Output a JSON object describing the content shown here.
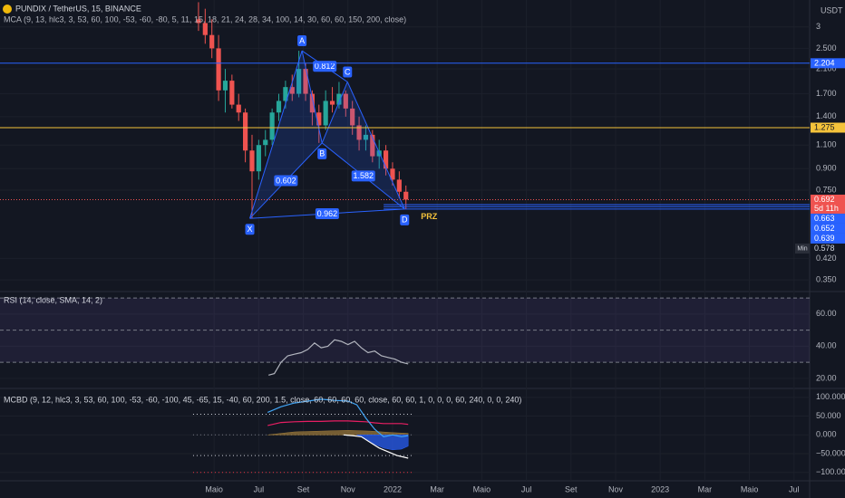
{
  "chart_data": [
    {
      "type": "candlestick",
      "title": "PUNDIX / TetherUS, 15, BINANCE",
      "subtitle": "MCA (9, 13, hlc3, 3, 53, 60, 100, -53, -60, -80, 5, 11, 15, 18, 21, 24, 28, 34, 100, 14, 30, 60, 60, 150, 200, close)",
      "currency": "USDT",
      "log_scale": true,
      "up_color": "#26a69a",
      "down_color": "#ef5350",
      "xlim": [
        -5.6,
        30.7
      ],
      "xticks": [
        {
          "value": 4,
          "label": "Maio"
        },
        {
          "value": 6,
          "label": "Jul"
        },
        {
          "value": 8,
          "label": "Set"
        },
        {
          "value": 10,
          "label": "Nov"
        },
        {
          "value": 12,
          "label": "2022"
        },
        {
          "value": 14,
          "label": "Mar"
        },
        {
          "value": 16,
          "label": "Maio"
        },
        {
          "value": 18,
          "label": "Jul"
        },
        {
          "value": 20,
          "label": "Set"
        },
        {
          "value": 22,
          "label": "Nov"
        },
        {
          "value": 24,
          "label": "2023"
        },
        {
          "value": 26,
          "label": "Mar"
        },
        {
          "value": 28,
          "label": "Maio"
        },
        {
          "value": 30,
          "label": "Jul"
        }
      ],
      "ylim": [
        0.317,
        3.77
      ],
      "yticks": [
        3,
        {
          "value": 2.5,
          "label": "2.500"
        },
        {
          "value": 2.1,
          "label": "2.100"
        },
        {
          "value": 1.7,
          "label": "1.700"
        },
        {
          "value": 1.4,
          "label": "1.400"
        },
        {
          "value": 1.1,
          "label": "1.100"
        },
        {
          "value": 0.9,
          "label": "0.900"
        },
        {
          "value": 0.75,
          "label": "0.750"
        },
        {
          "value": 0.42,
          "label": "0.420"
        },
        {
          "value": 0.35,
          "label": "0.350"
        }
      ],
      "x": [
        3.3,
        3.6,
        3.9,
        4.2,
        4.5,
        4.8,
        5.1,
        5.4,
        5.7,
        6.0,
        6.3,
        6.6,
        6.9,
        7.2,
        7.5,
        7.8,
        8.1,
        8.4,
        8.7,
        9.0,
        9.3,
        9.6,
        9.9,
        10.2,
        10.5,
        10.8,
        11.1,
        11.4,
        11.7,
        12.0,
        12.3,
        12.6
      ],
      "open": [
        3.2,
        3.1,
        2.8,
        2.5,
        1.75,
        1.9,
        1.55,
        1.45,
        1.05,
        0.88,
        1.1,
        1.15,
        1.45,
        1.6,
        1.8,
        1.7,
        2.1,
        1.7,
        1.45,
        1.3,
        1.6,
        1.55,
        1.7,
        1.5,
        1.3,
        1.15,
        1.2,
        1.0,
        1.05,
        0.9,
        0.82,
        0.74
      ],
      "high": [
        3.7,
        3.5,
        3.2,
        2.8,
        2.1,
        2.0,
        1.7,
        1.5,
        1.2,
        1.15,
        1.25,
        1.5,
        1.7,
        1.9,
        2.0,
        2.45,
        2.2,
        1.75,
        1.55,
        1.75,
        1.8,
        1.88,
        1.75,
        1.6,
        1.4,
        1.3,
        1.25,
        1.15,
        1.1,
        0.95,
        0.88,
        0.78
      ],
      "low": [
        2.9,
        2.6,
        2.3,
        1.6,
        1.45,
        1.5,
        1.35,
        0.95,
        0.59,
        0.82,
        1.0,
        1.1,
        1.35,
        1.5,
        1.6,
        1.65,
        1.6,
        1.3,
        1.12,
        1.25,
        1.45,
        1.5,
        1.4,
        1.2,
        1.05,
        1.05,
        0.95,
        0.9,
        0.85,
        0.78,
        0.7,
        0.639
      ],
      "close": [
        3.1,
        2.8,
        2.5,
        1.75,
        1.9,
        1.55,
        1.45,
        1.05,
        0.88,
        1.1,
        1.15,
        1.45,
        1.6,
        1.8,
        1.7,
        2.1,
        1.7,
        1.45,
        1.3,
        1.6,
        1.55,
        1.7,
        1.5,
        1.3,
        1.15,
        1.2,
        1.0,
        1.05,
        0.9,
        0.82,
        0.74,
        0.692
      ],
      "pattern": {
        "color": "#2962ff",
        "points": [
          {
            "label": "X",
            "x": 5.6,
            "y": 0.59
          },
          {
            "label": "A",
            "x": 7.94,
            "y": 2.45
          },
          {
            "label": "B",
            "x": 8.84,
            "y": 1.12
          },
          {
            "label": "C",
            "x": 9.98,
            "y": 1.88
          },
          {
            "label": "D",
            "x": 12.54,
            "y": 0.639
          }
        ],
        "ratios": [
          "0.602",
          "0.812",
          "1.582",
          "0.962"
        ]
      },
      "hlines": [
        {
          "value": 2.204,
          "color": "#2962ff",
          "text_color": "#ffffff"
        },
        {
          "value": 1.275,
          "color": "#f5c33b",
          "text_color": "#131722"
        }
      ],
      "last": {
        "value": 0.692,
        "countdown": "5d 11h",
        "color": "#ef5350"
      },
      "prz": {
        "label": "PRZ",
        "x0": 11.6,
        "levels": [
          0.663,
          0.652,
          0.639
        ],
        "color": "#2962ff",
        "label_color": "#f5c33b"
      },
      "min": {
        "value": 0.578,
        "label": "Min"
      }
    },
    {
      "type": "line",
      "title": "RSI (14, close, SMA, 14, 2)",
      "ylim": [
        14.3,
        74
      ],
      "yticks": [
        {
          "value": 60,
          "label": "60.00"
        },
        {
          "value": 40,
          "label": "40.00"
        },
        {
          "value": 20,
          "label": "20.00"
        }
      ],
      "band": [
        30,
        70
      ],
      "band_color": "#7e57c2",
      "levels": [
        {
          "value": 70,
          "color": "#787b86"
        },
        {
          "value": 50,
          "color": "#787b86"
        },
        {
          "value": 30,
          "color": "#787b86"
        }
      ],
      "series": [
        {
          "color": "#b2b5be",
          "x": [
            6.44,
            6.7,
            7.0,
            7.3,
            7.6,
            7.9,
            8.2,
            8.5,
            8.8,
            9.1,
            9.4,
            9.7,
            10.0,
            10.3,
            10.6,
            10.9,
            11.2,
            11.5,
            11.8,
            12.1,
            12.4,
            12.7
          ],
          "values": [
            22,
            23,
            30,
            34,
            35,
            36,
            38,
            42,
            39,
            40,
            44,
            43,
            41,
            43,
            39,
            36,
            37,
            34,
            33,
            32,
            30,
            29
          ]
        }
      ]
    },
    {
      "type": "line",
      "title": "MCBD (9, 12, hlc3, 3, 53, 60, 100, -53, -60, -100, 45, -65, 15, -40, 60, 200, 1.5, close, 60, 60, 60, 60, close, 60, 60, 1, 0, 0, 0, 60, 240, 0, 0, 240)",
      "ylim": [
        -120,
        116.5
      ],
      "yticks": [
        {
          "value": 100,
          "label": "100.000"
        },
        {
          "value": 50,
          "label": "50.000"
        },
        {
          "value": 0,
          "label": "0.000"
        },
        {
          "value": -50,
          "label": "−50.000"
        },
        {
          "value": -100,
          "label": "−100.000"
        }
      ],
      "levels_span": "data",
      "levels": [
        {
          "value": 55,
          "color": "#d1d4dc"
        },
        {
          "value": 0,
          "color": "#787b86"
        },
        {
          "value": -55,
          "color": "#d1d4dc"
        },
        {
          "value": -100,
          "color": "#f23645"
        }
      ],
      "series": [
        {
          "color": "#a07c3a",
          "fill": true,
          "x": [
            6.4,
            7.6,
            8.8,
            10.0,
            11.0,
            12.0,
            12.7
          ],
          "values": [
            0,
            8,
            10,
            12,
            10,
            6,
            4
          ]
        },
        {
          "color": "#2962ff",
          "fill": true,
          "x": [
            10.4,
            10.8,
            11.2,
            11.6,
            12.0,
            12.4,
            12.7
          ],
          "values": [
            0,
            -10,
            -25,
            -35,
            -40,
            -38,
            -30
          ]
        },
        {
          "color": "#e91e63",
          "x": [
            6.4,
            7.0,
            7.6,
            8.2,
            8.8,
            9.4,
            10.0,
            10.4,
            10.8,
            11.2,
            11.6,
            12.0,
            12.4,
            12.7
          ],
          "values": [
            25,
            33,
            35,
            36,
            36,
            37,
            37,
            36,
            35,
            32,
            30,
            30,
            30,
            28
          ]
        },
        {
          "color": "#42a5f5",
          "x": [
            6.4,
            7.0,
            7.6,
            8.2,
            8.8,
            9.4,
            10.0,
            10.4,
            10.8,
            11.2,
            11.6,
            12.0,
            12.4,
            12.7
          ],
          "values": [
            60,
            75,
            85,
            90,
            95,
            92,
            90,
            80,
            45,
            15,
            -5,
            0,
            -5,
            -2
          ]
        },
        {
          "color": "#ffffff",
          "x": [
            9.8,
            10.2,
            10.6,
            11.0,
            11.4,
            11.8,
            12.2,
            12.7
          ],
          "values": [
            0,
            -2,
            -5,
            -20,
            -35,
            -45,
            -55,
            -62
          ]
        }
      ]
    }
  ]
}
